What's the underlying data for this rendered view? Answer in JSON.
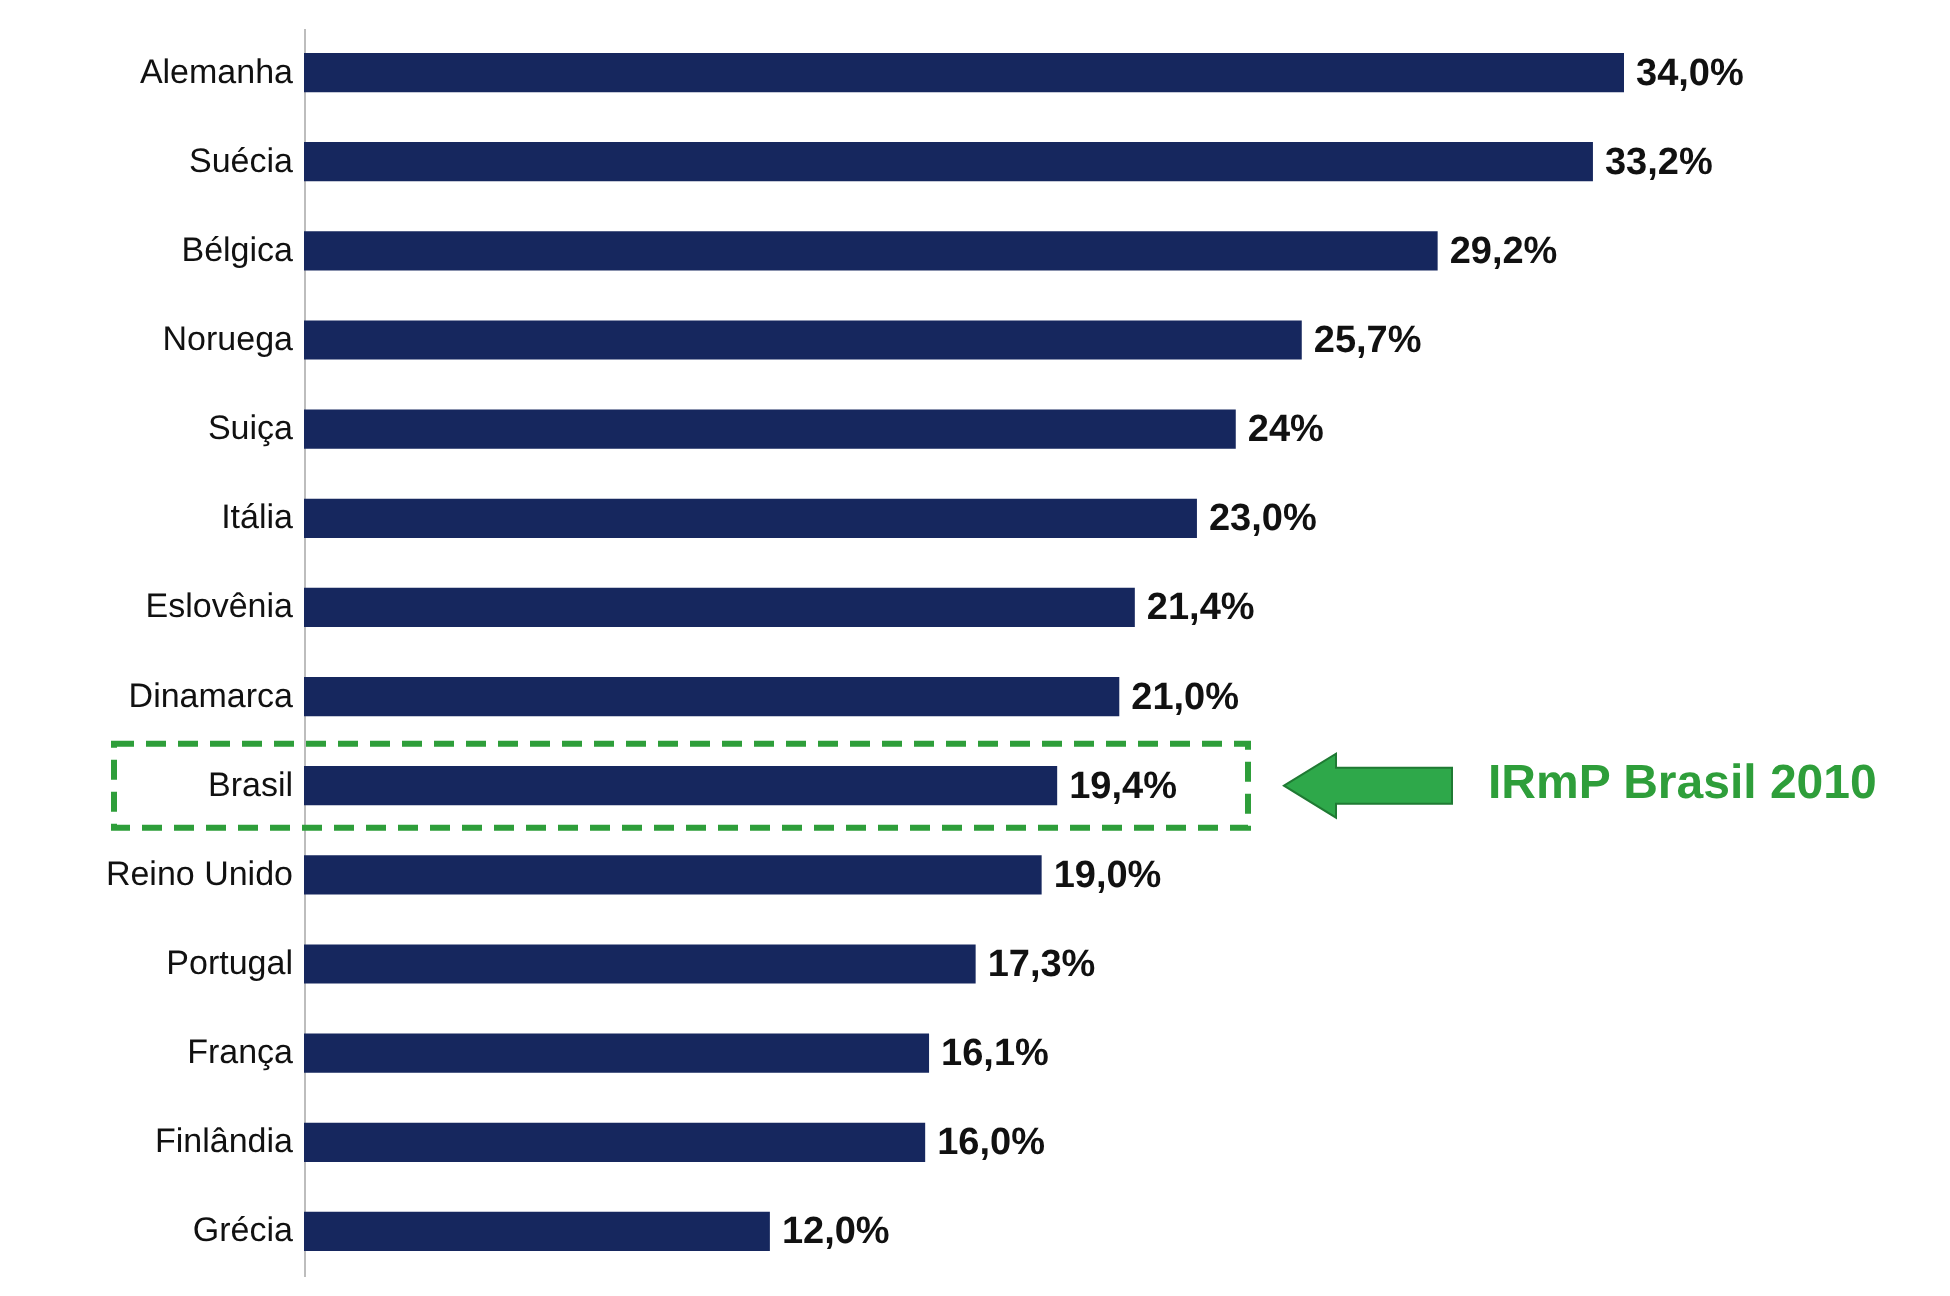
{
  "chart_data": {
    "type": "bar",
    "orientation": "horizontal",
    "tick_labels": "y",
    "color": "#16275e",
    "categories": [
      "Alemanha",
      "Suécia",
      "Bélgica",
      "Noruega",
      "Suiça",
      "Itália",
      "Eslovênia",
      "Dinamarca",
      "Brasil",
      "Reino Unido",
      "Portugal",
      "França",
      "Finlândia",
      "Grécia"
    ],
    "values": [
      34.0,
      33.2,
      29.2,
      25.7,
      24,
      23.0,
      21.4,
      21.0,
      19.4,
      19.0,
      17.3,
      16.1,
      16.0,
      12.0
    ],
    "value_labels": [
      "34,0%",
      "33,2%",
      "29,2%",
      "25,7%",
      "24%",
      "23,0%",
      "21,4%",
      "21,0%",
      "19,4%",
      "19,0%",
      "17,3%",
      "16,1%",
      "16,0%",
      "12,0%"
    ],
    "annotations": [
      "IRmP Brasil 2010"
    ]
  }
}
